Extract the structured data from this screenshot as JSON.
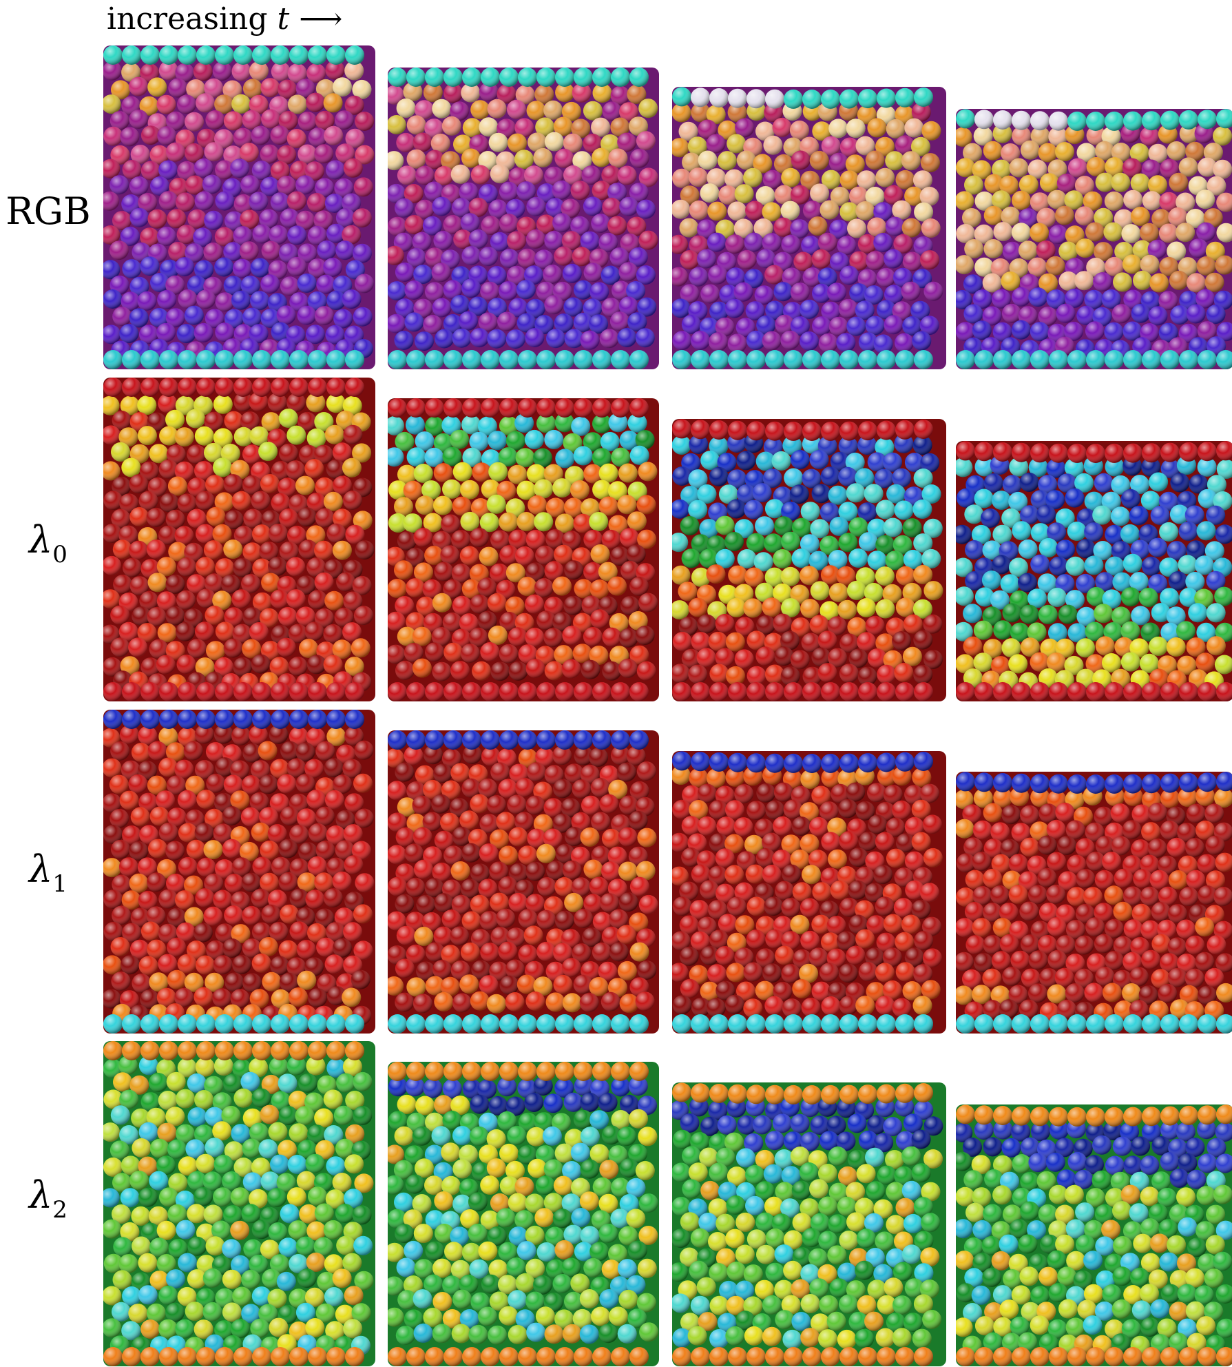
{
  "header": {
    "text": "increasing",
    "var": "t",
    "arrow": "⟶"
  },
  "rows": [
    {
      "label_text": "RGB",
      "label_sym": "",
      "label_sub": "",
      "scheme": "rgb",
      "top_plate": "#2fd8c4",
      "bottom_plate": "#2cc9cf"
    },
    {
      "label_text": "",
      "label_sym": "λ",
      "label_sub": "0",
      "scheme": "l0",
      "top_plate": "#c8141c",
      "bottom_plate": "#c8141c"
    },
    {
      "label_text": "",
      "label_sym": "λ",
      "label_sub": "1",
      "scheme": "l1",
      "top_plate": "#1f2fc8",
      "bottom_plate": "#35d3dc"
    },
    {
      "label_text": "",
      "label_sym": "λ",
      "label_sub": "2",
      "scheme": "l2",
      "top_plate": "#ef8a1a",
      "bottom_plate": "#ef7f1a"
    }
  ],
  "columns": 4
}
